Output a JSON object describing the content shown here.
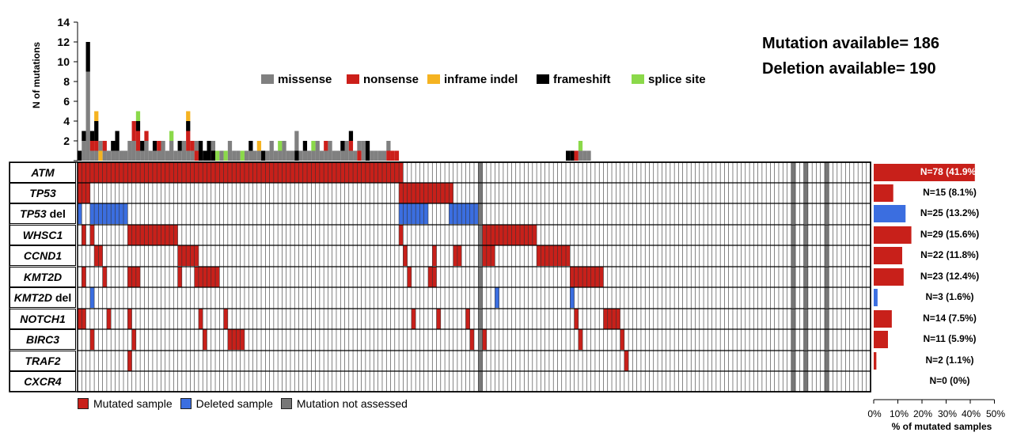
{
  "header": {
    "mutation_available": "Mutation available= 186",
    "deletion_available": "Deletion available= 190"
  },
  "colors": {
    "missense": "#808080",
    "nonsense": "#cc1f1a",
    "inframe": "#f5b321",
    "frameshift": "#000000",
    "splice": "#8bd94a",
    "mutated": "#c8201a",
    "deleted": "#3b6ee0",
    "not_assessed": "#777777"
  },
  "chart_data": [
    {
      "type": "bar",
      "name": "mutations-per-sample",
      "title": "",
      "ylabel": "N of mutations",
      "ylim": [
        0,
        14
      ],
      "yticks": [
        "14",
        "12",
        "10",
        "8",
        "6",
        "4",
        "2"
      ],
      "legend": [
        "missense",
        "nonsense",
        "inframe indel",
        "frameshift",
        "splice site"
      ],
      "series_order": [
        "missense",
        "nonsense",
        "inframe",
        "frameshift",
        "splice"
      ],
      "segments": [
        [
          [
            "frameshift",
            1
          ]
        ],
        [
          [
            "missense",
            2
          ],
          [
            "frameshift",
            1
          ]
        ],
        [
          [
            "missense",
            9
          ],
          [
            "frameshift",
            3
          ]
        ],
        [
          [
            "missense",
            1
          ],
          [
            "nonsense",
            1
          ],
          [
            "frameshift",
            1
          ]
        ],
        [
          [
            "missense",
            1
          ],
          [
            "nonsense",
            1
          ],
          [
            "frameshift",
            2
          ],
          [
            "inframe",
            1
          ]
        ],
        [
          [
            "inframe",
            1
          ],
          [
            "missense",
            1
          ]
        ],
        [
          [
            "missense",
            1
          ],
          [
            "nonsense",
            1
          ]
        ],
        [
          [
            "missense",
            1
          ]
        ],
        [
          [
            "missense",
            1
          ],
          [
            "frameshift",
            1
          ]
        ],
        [
          [
            "missense",
            1
          ],
          [
            "frameshift",
            2
          ]
        ],
        [
          [
            "missense",
            1
          ]
        ],
        [
          [
            "missense",
            1
          ]
        ],
        [
          [
            "missense",
            2
          ]
        ],
        [
          [
            "missense",
            2
          ],
          [
            "nonsense",
            2
          ]
        ],
        [
          [
            "missense",
            1
          ],
          [
            "nonsense",
            2
          ],
          [
            "frameshift",
            1
          ],
          [
            "splice",
            1
          ]
        ],
        [
          [
            "missense",
            1
          ],
          [
            "frameshift",
            1
          ]
        ],
        [
          [
            "missense",
            2
          ],
          [
            "nonsense",
            1
          ]
        ],
        [
          [
            "missense",
            1
          ]
        ],
        [
          [
            "missense",
            1
          ],
          [
            "frameshift",
            1
          ]
        ],
        [
          [
            "missense",
            1
          ],
          [
            "nonsense",
            1
          ]
        ],
        [
          [
            "missense",
            2
          ]
        ],
        [
          [
            "missense",
            1
          ]
        ],
        [
          [
            "missense",
            2
          ],
          [
            "splice",
            1
          ]
        ],
        [
          [
            "missense",
            1
          ]
        ],
        [
          [
            "missense",
            1
          ],
          [
            "frameshift",
            1
          ]
        ],
        [
          [
            "missense",
            2
          ]
        ],
        [
          [
            "missense",
            1
          ],
          [
            "nonsense",
            2
          ],
          [
            "frameshift",
            1
          ],
          [
            "inframe",
            1
          ]
        ],
        [
          [
            "missense",
            1
          ],
          [
            "nonsense",
            1
          ]
        ],
        [
          [
            "nonsense",
            1
          ],
          [
            "missense",
            1
          ]
        ],
        [
          [
            "frameshift",
            2
          ]
        ],
        [
          [
            "frameshift",
            1
          ]
        ],
        [
          [
            "frameshift",
            2
          ]
        ],
        [
          [
            "frameshift",
            1
          ],
          [
            "missense",
            1
          ]
        ],
        [
          [
            "splice",
            1
          ]
        ],
        [
          [
            "missense",
            1
          ]
        ],
        [
          [
            "splice",
            1
          ]
        ],
        [
          [
            "missense",
            2
          ]
        ],
        [
          [
            "missense",
            1
          ]
        ],
        [
          [
            "missense",
            1
          ]
        ],
        [
          [
            "splice",
            1
          ]
        ],
        [
          [
            "missense",
            1
          ]
        ],
        [
          [
            "missense",
            1
          ],
          [
            "frameshift",
            1
          ]
        ],
        [
          [
            "missense",
            1
          ]
        ],
        [
          [
            "missense",
            1
          ],
          [
            "inframe",
            1
          ]
        ],
        [
          [
            "frameshift",
            1
          ]
        ],
        [
          [
            "missense",
            1
          ]
        ],
        [
          [
            "missense",
            2
          ]
        ],
        [
          [
            "missense",
            1
          ]
        ],
        [
          [
            "missense",
            1
          ],
          [
            "splice",
            1
          ]
        ],
        [
          [
            "missense",
            2
          ]
        ],
        [
          [
            "missense",
            1
          ]
        ],
        [
          [
            "missense",
            1
          ]
        ],
        [
          [
            "frameshift",
            1
          ],
          [
            "missense",
            2
          ]
        ],
        [
          [
            "missense",
            1
          ]
        ],
        [
          [
            "missense",
            1
          ],
          [
            "frameshift",
            1
          ]
        ],
        [
          [
            "missense",
            1
          ]
        ],
        [
          [
            "missense",
            1
          ],
          [
            "splice",
            1
          ]
        ],
        [
          [
            "missense",
            2
          ]
        ],
        [
          [
            "missense",
            1
          ]
        ],
        [
          [
            "missense",
            1
          ],
          [
            "nonsense",
            1
          ]
        ],
        [
          [
            "missense",
            2
          ]
        ],
        [
          [
            "missense",
            1
          ]
        ],
        [
          [
            "missense",
            1
          ]
        ],
        [
          [
            "missense",
            1
          ],
          [
            "frameshift",
            1
          ]
        ],
        [
          [
            "missense",
            2
          ]
        ],
        [
          [
            "missense",
            1
          ],
          [
            "nonsense",
            1
          ],
          [
            "frameshift",
            1
          ]
        ],
        [
          [
            "missense",
            1
          ]
        ],
        [
          [
            "nonsense",
            1
          ],
          [
            "missense",
            1
          ]
        ],
        [
          [
            "missense",
            2
          ]
        ],
        [
          [
            "frameshift",
            2
          ]
        ],
        [
          [
            "missense",
            1
          ]
        ],
        [
          [
            "missense",
            1
          ]
        ],
        [
          [
            "missense",
            1
          ]
        ],
        [
          [
            "missense",
            1
          ]
        ],
        [
          [
            "nonsense",
            1
          ],
          [
            "missense",
            1
          ]
        ],
        [
          [
            "nonsense",
            1
          ]
        ],
        [
          [
            "nonsense",
            1
          ]
        ],
        [
          [
            "frameshift",
            1
          ]
        ],
        [
          [
            "frameshift",
            1
          ]
        ],
        [
          [
            "nonsense",
            1
          ]
        ],
        [
          [
            "missense",
            1
          ],
          [
            "splice",
            1
          ]
        ],
        [
          [
            "missense",
            1
          ]
        ],
        [
          [
            "missense",
            1
          ]
        ]
      ],
      "segments_offsets": "first 77 samples span bars 0-76; samples 77 onward separated by gap"
    },
    {
      "type": "table",
      "name": "oncoprint",
      "genes": [
        "ATM",
        "TP53",
        "TP53",
        "WHSC1",
        "CCND1",
        "KMT2D",
        "KMT2D",
        "NOTCH1",
        "BIRC3",
        "TRAF2",
        "CXCR4"
      ],
      "gene_suffixes": [
        "",
        "",
        "del",
        "",
        "",
        "",
        "del",
        "",
        "",
        "",
        ""
      ],
      "frequency_labels": [
        "N=78 (41.9%)",
        "N=15 (8.1%)",
        "N=25 (13.2%)",
        "N=29 (15.6%)",
        "N=22 (11.8%)",
        "N=23 (12.4%)",
        "N=3 (1.6%)",
        "N=14 (7.5%)",
        "N=11 (5.9%)",
        "N=2 (1.1%)",
        "N=0 (0%)"
      ],
      "frequencies": [
        41.9,
        8.1,
        13.2,
        15.6,
        11.8,
        12.4,
        1.6,
        7.5,
        5.9,
        1.1,
        0
      ],
      "n_samples": 190,
      "not_assessed_columns": [
        96,
        171,
        174,
        179
      ],
      "cells": [
        [
          [
            0,
            77
          ]
        ],
        [
          [
            0,
            2
          ],
          [
            77,
            89
          ]
        ],
        [
          [
            0,
            0
          ],
          [
            3,
            11
          ],
          [
            77,
            83
          ],
          [
            89,
            96
          ]
        ],
        [
          [
            1,
            1
          ],
          [
            3,
            3
          ],
          [
            12,
            23
          ],
          [
            77,
            77
          ],
          [
            97,
            109
          ]
        ],
        [
          [
            4,
            5
          ],
          [
            24,
            28
          ],
          [
            78,
            78
          ],
          [
            85,
            85
          ],
          [
            90,
            91
          ],
          [
            97,
            99
          ],
          [
            110,
            117
          ]
        ],
        [
          [
            1,
            1
          ],
          [
            6,
            6
          ],
          [
            12,
            14
          ],
          [
            24,
            24
          ],
          [
            28,
            33
          ],
          [
            79,
            79
          ],
          [
            84,
            85
          ],
          [
            118,
            125
          ]
        ],
        [
          [
            3,
            3
          ],
          [
            100,
            100
          ],
          [
            118,
            118
          ]
        ],
        [
          [
            0,
            1
          ],
          [
            7,
            7
          ],
          [
            12,
            12
          ],
          [
            29,
            29
          ],
          [
            35,
            35
          ],
          [
            80,
            80
          ],
          [
            86,
            86
          ],
          [
            93,
            93
          ],
          [
            119,
            119
          ],
          [
            126,
            129
          ]
        ],
        [
          [
            3,
            3
          ],
          [
            13,
            13
          ],
          [
            30,
            30
          ],
          [
            36,
            39
          ],
          [
            94,
            94
          ],
          [
            97,
            97
          ],
          [
            120,
            120
          ],
          [
            130,
            130
          ]
        ],
        [
          [
            12,
            12
          ],
          [
            131,
            131
          ]
        ],
        []
      ],
      "cell_types": [
        "mutated",
        "mutated",
        "deleted",
        "mutated",
        "mutated",
        "mutated",
        "deleted",
        "mutated",
        "mutated",
        "mutated",
        "mutated"
      ],
      "xlabel": "% of mutated samples",
      "xticks": [
        "0%",
        "10%",
        "20%",
        "30%",
        "40%",
        "50%"
      ],
      "xlim": [
        0,
        50
      ]
    }
  ],
  "legend_bottom": {
    "mutated": "Mutated sample",
    "deleted": "Deleted sample",
    "not_assessed": "Mutation not assessed"
  },
  "legend_top": {
    "missense": "missense",
    "nonsense": "nonsense",
    "inframe": "inframe indel",
    "frameshift": "frameshift",
    "splice": "splice site"
  }
}
